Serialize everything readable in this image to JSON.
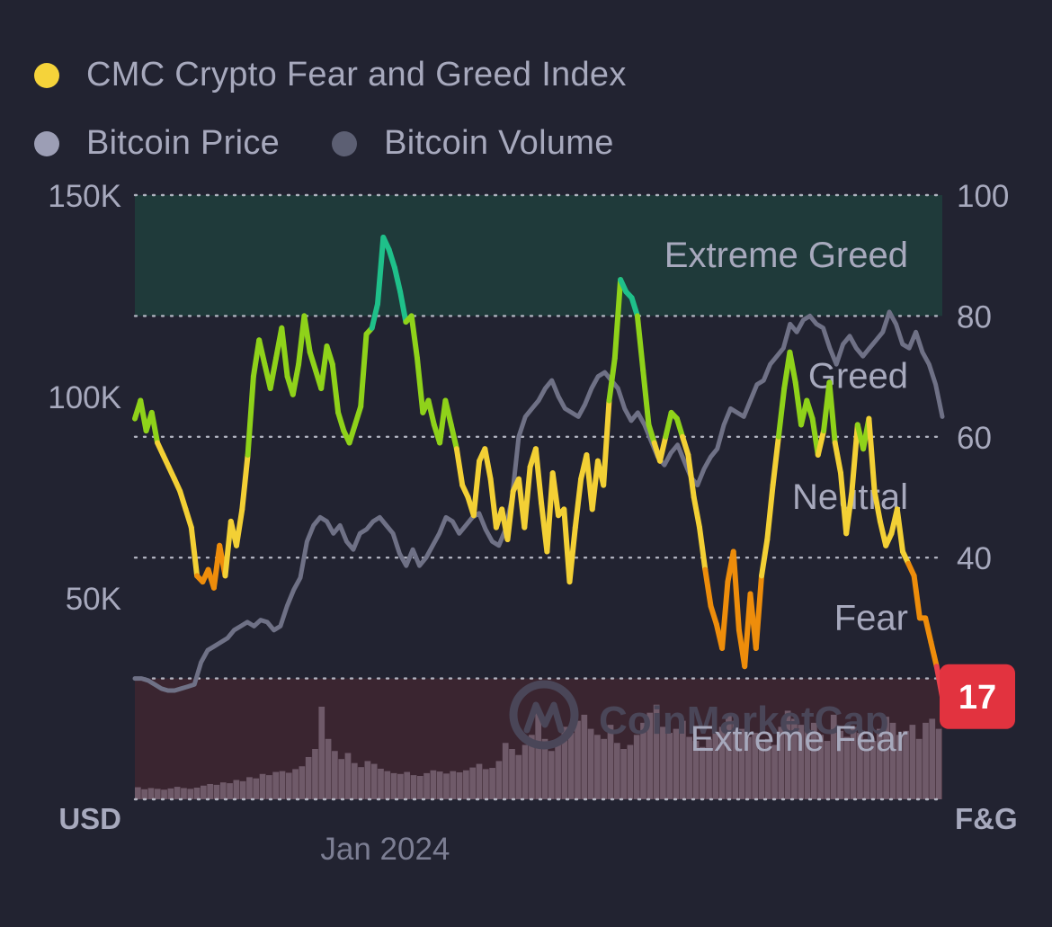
{
  "legend": {
    "items": [
      {
        "label": "CMC Crypto Fear and Greed Index",
        "color": "#f5d33a"
      },
      {
        "label": "Bitcoin Price",
        "color": "#9c9eb5"
      },
      {
        "label": "Bitcoin Volume",
        "color": "#5c5f73"
      }
    ]
  },
  "colors": {
    "background": "#222331",
    "extreme_greed_band": "#1f3a3a",
    "extreme_fear_band": "#3a2530",
    "grid": "#c9cbd8",
    "price_line": "#6f7186",
    "volume_bars": "#7d6878",
    "band_label": "#a7a9bd",
    "axis_label": "#a7a9bd",
    "current_badge": "#e2333f",
    "watermark": "#4a4658"
  },
  "watermark": {
    "text": "CoinMarketCap"
  },
  "chart_data": {
    "type": "line",
    "title": "CMC Crypto Fear and Greed Index",
    "xlabel": "",
    "x_tick_labels": [
      {
        "label": "Jan 2024",
        "at_fraction": 0.31
      }
    ],
    "left_axis": {
      "unit_label": "USD",
      "range": [
        0,
        150000
      ],
      "ticks": [
        {
          "value": 150000,
          "label": "150K"
        },
        {
          "value": 100000,
          "label": "100K"
        },
        {
          "value": 50000,
          "label": "50K"
        }
      ]
    },
    "right_axis": {
      "unit_label": "F&G",
      "range": [
        0,
        100
      ],
      "ticks": [
        {
          "value": 100,
          "label": "100"
        },
        {
          "value": 80,
          "label": "80"
        },
        {
          "value": 60,
          "label": "60"
        },
        {
          "value": 40,
          "label": "40"
        }
      ],
      "gridlines": [
        100,
        80,
        60,
        40,
        20,
        0
      ]
    },
    "bands": [
      {
        "name": "Extreme Greed",
        "from": 80,
        "to": 100,
        "line_color": "#1fc08a"
      },
      {
        "name": "Greed",
        "from": 60,
        "to": 80,
        "line_color": "#8fd21a"
      },
      {
        "name": "Neutral",
        "from": 40,
        "to": 60,
        "line_color": "#f3d035"
      },
      {
        "name": "Fear",
        "from": 20,
        "to": 40,
        "line_color": "#ee8d0b"
      },
      {
        "name": "Extreme Fear",
        "from": 0,
        "to": 20,
        "line_color": "#e8414c"
      }
    ],
    "current_value": {
      "label": "17",
      "value": 17
    },
    "series": [
      {
        "name": "CMC Crypto Fear and Greed Index",
        "axis": "right",
        "values": [
          63,
          66,
          61,
          64,
          59,
          57,
          55,
          53,
          51,
          48,
          45,
          37,
          36,
          38,
          35,
          42,
          37,
          46,
          42,
          48,
          57,
          70,
          76,
          72,
          68,
          73,
          78,
          70,
          67,
          72,
          80,
          74,
          71,
          68,
          75,
          72,
          64,
          61,
          59,
          62,
          65,
          77,
          78,
          82,
          93,
          91,
          88,
          84,
          79,
          80,
          73,
          64,
          66,
          62,
          59,
          66,
          62,
          58,
          52,
          50,
          47,
          56,
          58,
          53,
          45,
          48,
          43,
          51,
          53,
          45,
          55,
          58,
          49,
          41,
          54,
          47,
          48,
          36,
          45,
          53,
          57,
          48,
          56,
          52,
          66,
          73,
          86,
          84,
          83,
          80,
          71,
          62,
          59,
          56,
          60,
          64,
          63,
          60,
          57,
          50,
          45,
          38,
          32,
          29,
          25,
          36,
          41,
          28,
          22,
          34,
          25,
          37,
          43,
          52,
          60,
          68,
          74,
          69,
          62,
          66,
          63,
          57,
          61,
          69,
          59,
          54,
          44,
          51,
          62,
          58,
          63,
          51,
          46,
          42,
          44,
          48,
          41,
          39,
          37,
          30,
          30,
          26,
          22,
          17
        ]
      },
      {
        "name": "Bitcoin Price",
        "axis": "left",
        "values": [
          30000,
          30000,
          29500,
          28500,
          27500,
          27000,
          27000,
          27500,
          28000,
          28500,
          34000,
          37000,
          38000,
          39000,
          40000,
          42000,
          43000,
          44000,
          43000,
          44500,
          44000,
          42000,
          43000,
          48000,
          52000,
          55000,
          64000,
          68000,
          70000,
          69000,
          66000,
          68000,
          64000,
          62000,
          66000,
          67000,
          69000,
          70000,
          68000,
          66000,
          61000,
          58000,
          62000,
          58000,
          60000,
          63000,
          66000,
          70000,
          69000,
          66000,
          68000,
          70000,
          71000,
          67000,
          64000,
          63000,
          67000,
          75000,
          90000,
          95000,
          97000,
          99000,
          102000,
          104000,
          100000,
          97000,
          96000,
          95000,
          98000,
          102000,
          105000,
          106000,
          104000,
          102000,
          97000,
          94000,
          96000,
          93000,
          89000,
          85000,
          83000,
          86000,
          88000,
          84000,
          80000,
          78000,
          82000,
          85000,
          87000,
          93000,
          97000,
          96000,
          95000,
          99000,
          103000,
          104000,
          108000,
          110000,
          112000,
          118000,
          116000,
          119000,
          120000,
          118000,
          117000,
          112000,
          108000,
          113000,
          115000,
          112000,
          110000,
          112000,
          114000,
          116000,
          121000,
          118000,
          113000,
          112000,
          116000,
          111000,
          108000,
          103000,
          95000
        ]
      },
      {
        "name": "Bitcoin Volume",
        "axis": "left",
        "values": [
          3000,
          2500,
          2800,
          2600,
          2400,
          2700,
          3100,
          2800,
          2600,
          2900,
          3400,
          3800,
          3600,
          4200,
          4000,
          4800,
          4500,
          5500,
          5200,
          6300,
          6000,
          6800,
          7000,
          6600,
          7500,
          8200,
          10500,
          12500,
          23000,
          15000,
          12000,
          10000,
          11500,
          9000,
          8000,
          9500,
          8800,
          7600,
          7000,
          6500,
          6300,
          6800,
          6000,
          5800,
          6500,
          7200,
          6900,
          6400,
          7000,
          6700,
          7200,
          7900,
          8800,
          7500,
          7800,
          9500,
          14000,
          12500,
          11000,
          13500,
          16000,
          22000,
          15000,
          12000,
          14500,
          18000,
          16500,
          19500,
          21000,
          17500,
          16000,
          15000,
          18500,
          14000,
          12500,
          13500,
          16000,
          19000,
          21500,
          23500,
          18000,
          16500,
          17500,
          19500,
          15500,
          14500,
          13000,
          15000,
          16500,
          18000,
          21000,
          19500,
          17500,
          15500,
          16500,
          14000,
          15000,
          13500,
          18000,
          22000,
          20000,
          18500,
          17000,
          19000,
          16000,
          14500,
          21000,
          17000,
          15500,
          18000,
          16500,
          15000,
          14500,
          17500,
          20500,
          19000,
          16000,
          17000,
          18500,
          15000,
          19000,
          20000,
          17500
        ]
      }
    ]
  }
}
